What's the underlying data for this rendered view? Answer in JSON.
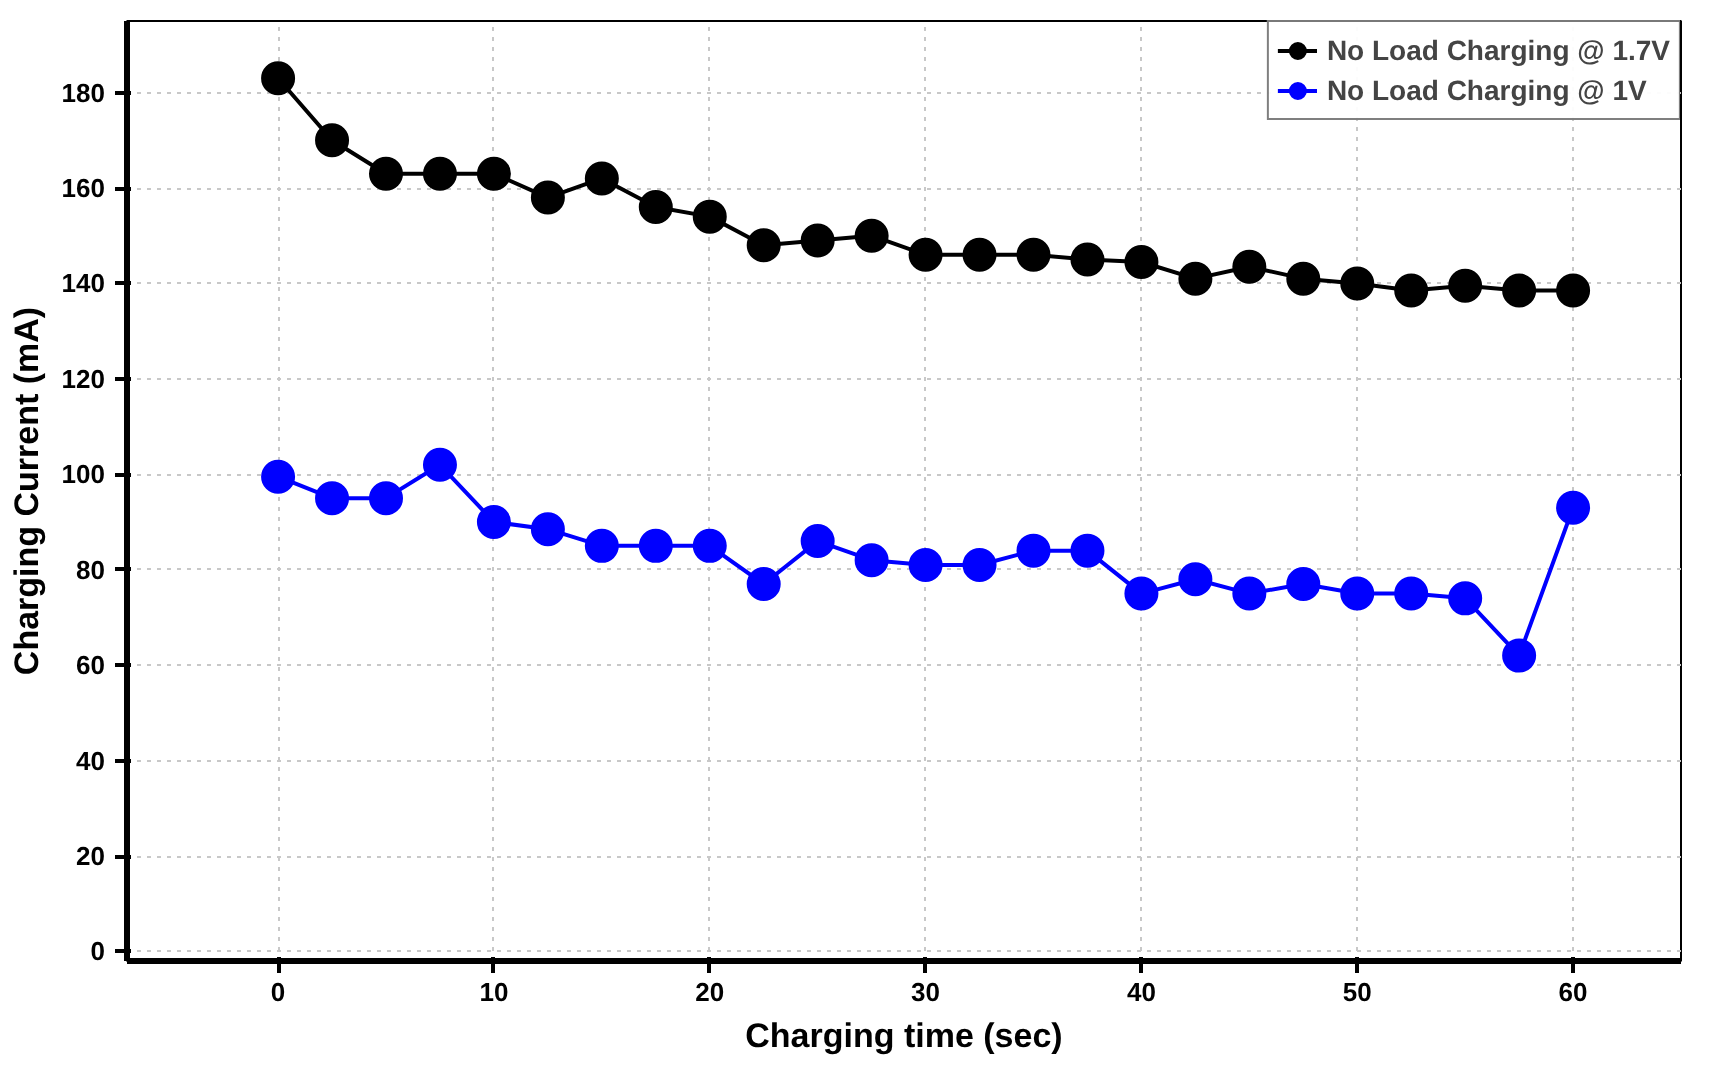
{
  "chart_data": {
    "type": "line",
    "xlabel": "Charging time (sec)",
    "ylabel": "Charging Current (mA)",
    "x": [
      0,
      2.5,
      5,
      7.5,
      10,
      12.5,
      15,
      17.5,
      20,
      22.5,
      25,
      27.5,
      30,
      32.5,
      35,
      37.5,
      40,
      42.5,
      45,
      47.5,
      50,
      52.5,
      55,
      57.5,
      60
    ],
    "series": [
      {
        "name": "No Load Charging @ 1.7V",
        "color": "#000000",
        "marker": "circle",
        "values": [
          183,
          170,
          163,
          163,
          163,
          158,
          162,
          156,
          154,
          148,
          149,
          150,
          146,
          146,
          146,
          145,
          144.5,
          141,
          143.5,
          141,
          140,
          138.5,
          139.5,
          138.5,
          138.5
        ]
      },
      {
        "name": "No Load Charging @ 1V",
        "color": "#0000ff",
        "marker": "circle",
        "values": [
          99.5,
          95,
          95,
          102,
          90,
          88.5,
          85,
          85,
          85,
          77,
          86,
          82,
          81,
          81,
          84,
          84,
          75,
          78,
          75,
          77,
          75,
          75,
          74,
          62,
          93
        ]
      }
    ],
    "xlim": [
      -7,
      65
    ],
    "xticks": [
      0,
      10,
      20,
      30,
      40,
      50,
      60
    ],
    "ylim": [
      -2,
      195
    ],
    "yticks": [
      0,
      20,
      40,
      60,
      80,
      100,
      120,
      140,
      160,
      180
    ],
    "grid": true,
    "legend": "top right",
    "line_style": "solid"
  }
}
